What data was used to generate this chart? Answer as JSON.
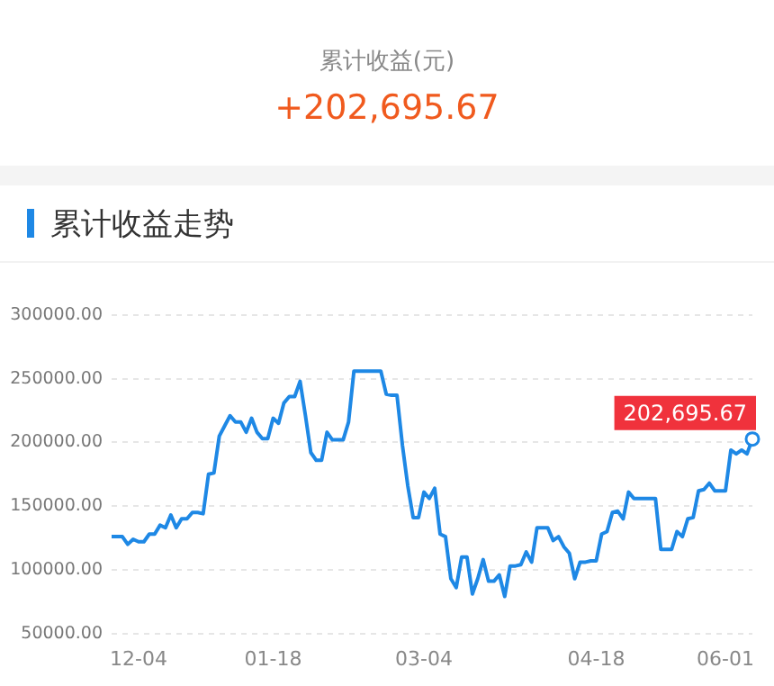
{
  "chart_data": {
    "type": "line",
    "title": "累计收益走势",
    "annotations": [
      "累计收益(元)",
      "+202,695.67",
      "202,695.67"
    ],
    "categories": [
      null,
      null,
      null,
      null,
      null,
      "12-04",
      null,
      null,
      null,
      null,
      null,
      null,
      null,
      null,
      null,
      null,
      null,
      null,
      null,
      null,
      null,
      null,
      null,
      null,
      null,
      null,
      null,
      null,
      null,
      null,
      "01-18",
      null,
      null,
      null,
      null,
      null,
      null,
      null,
      null,
      null,
      null,
      null,
      null,
      null,
      null,
      null,
      null,
      null,
      null,
      null,
      null,
      null,
      null,
      null,
      null,
      null,
      null,
      null,
      "03-04",
      null,
      null,
      null,
      null,
      null,
      null,
      null,
      null,
      null,
      null,
      null,
      null,
      null,
      null,
      null,
      null,
      null,
      null,
      null,
      null,
      null,
      null,
      null,
      null,
      null,
      null,
      null,
      null,
      null,
      null,
      null,
      "04-18",
      null,
      null,
      null,
      null,
      null,
      null,
      null,
      null,
      null,
      null,
      null,
      null,
      null,
      null,
      null,
      null,
      null,
      null,
      null,
      null,
      null,
      null,
      null,
      "06-01",
      null,
      null,
      null,
      null,
      null
    ],
    "series": [
      {
        "color": "#1e88e5",
        "values": [
          126000,
          126000,
          126000,
          120000,
          124000,
          122000,
          122000,
          128000,
          128000,
          135000,
          133000,
          143000,
          133000,
          140000,
          140000,
          145000,
          145000,
          144000,
          175000,
          176000,
          205000,
          213000,
          221000,
          216000,
          216000,
          208000,
          219000,
          208000,
          203000,
          203000,
          219000,
          215000,
          231000,
          236000,
          236000,
          248000,
          221000,
          192000,
          186000,
          186000,
          208000,
          202000,
          202000,
          202000,
          216000,
          256000,
          256000,
          256000,
          256000,
          256000,
          256000,
          238000,
          237000,
          237000,
          198000,
          166000,
          141000,
          141000,
          161000,
          156000,
          164000,
          128000,
          126000,
          93000,
          86000,
          110000,
          110000,
          81000,
          93000,
          108000,
          91000,
          91000,
          96000,
          79000,
          103000,
          103000,
          104000,
          114000,
          106000,
          133000,
          133000,
          133000,
          123000,
          126000,
          118000,
          113000,
          93000,
          106000,
          106000,
          107000,
          107000,
          128000,
          130000,
          145000,
          146000,
          140000,
          161000,
          156000,
          156000,
          156000,
          156000,
          156000,
          116000,
          116000,
          116000,
          130000,
          126000,
          140000,
          141000,
          162000,
          163000,
          168000,
          162000,
          162000,
          162000,
          194000,
          191000,
          194000,
          191000,
          202695.67
        ]
      }
    ],
    "ylim": [
      50000,
      300000
    ],
    "yticks": [
      {
        "value": 50000,
        "label": "50000.00"
      },
      {
        "value": 100000,
        "label": "100000.00"
      },
      {
        "value": 150000,
        "label": "150000.00"
      },
      {
        "value": 200000,
        "label": "200000.00"
      },
      {
        "value": 250000,
        "label": "250000.00"
      },
      {
        "value": 300000,
        "label": "300000.00"
      }
    ],
    "grid": "y"
  }
}
